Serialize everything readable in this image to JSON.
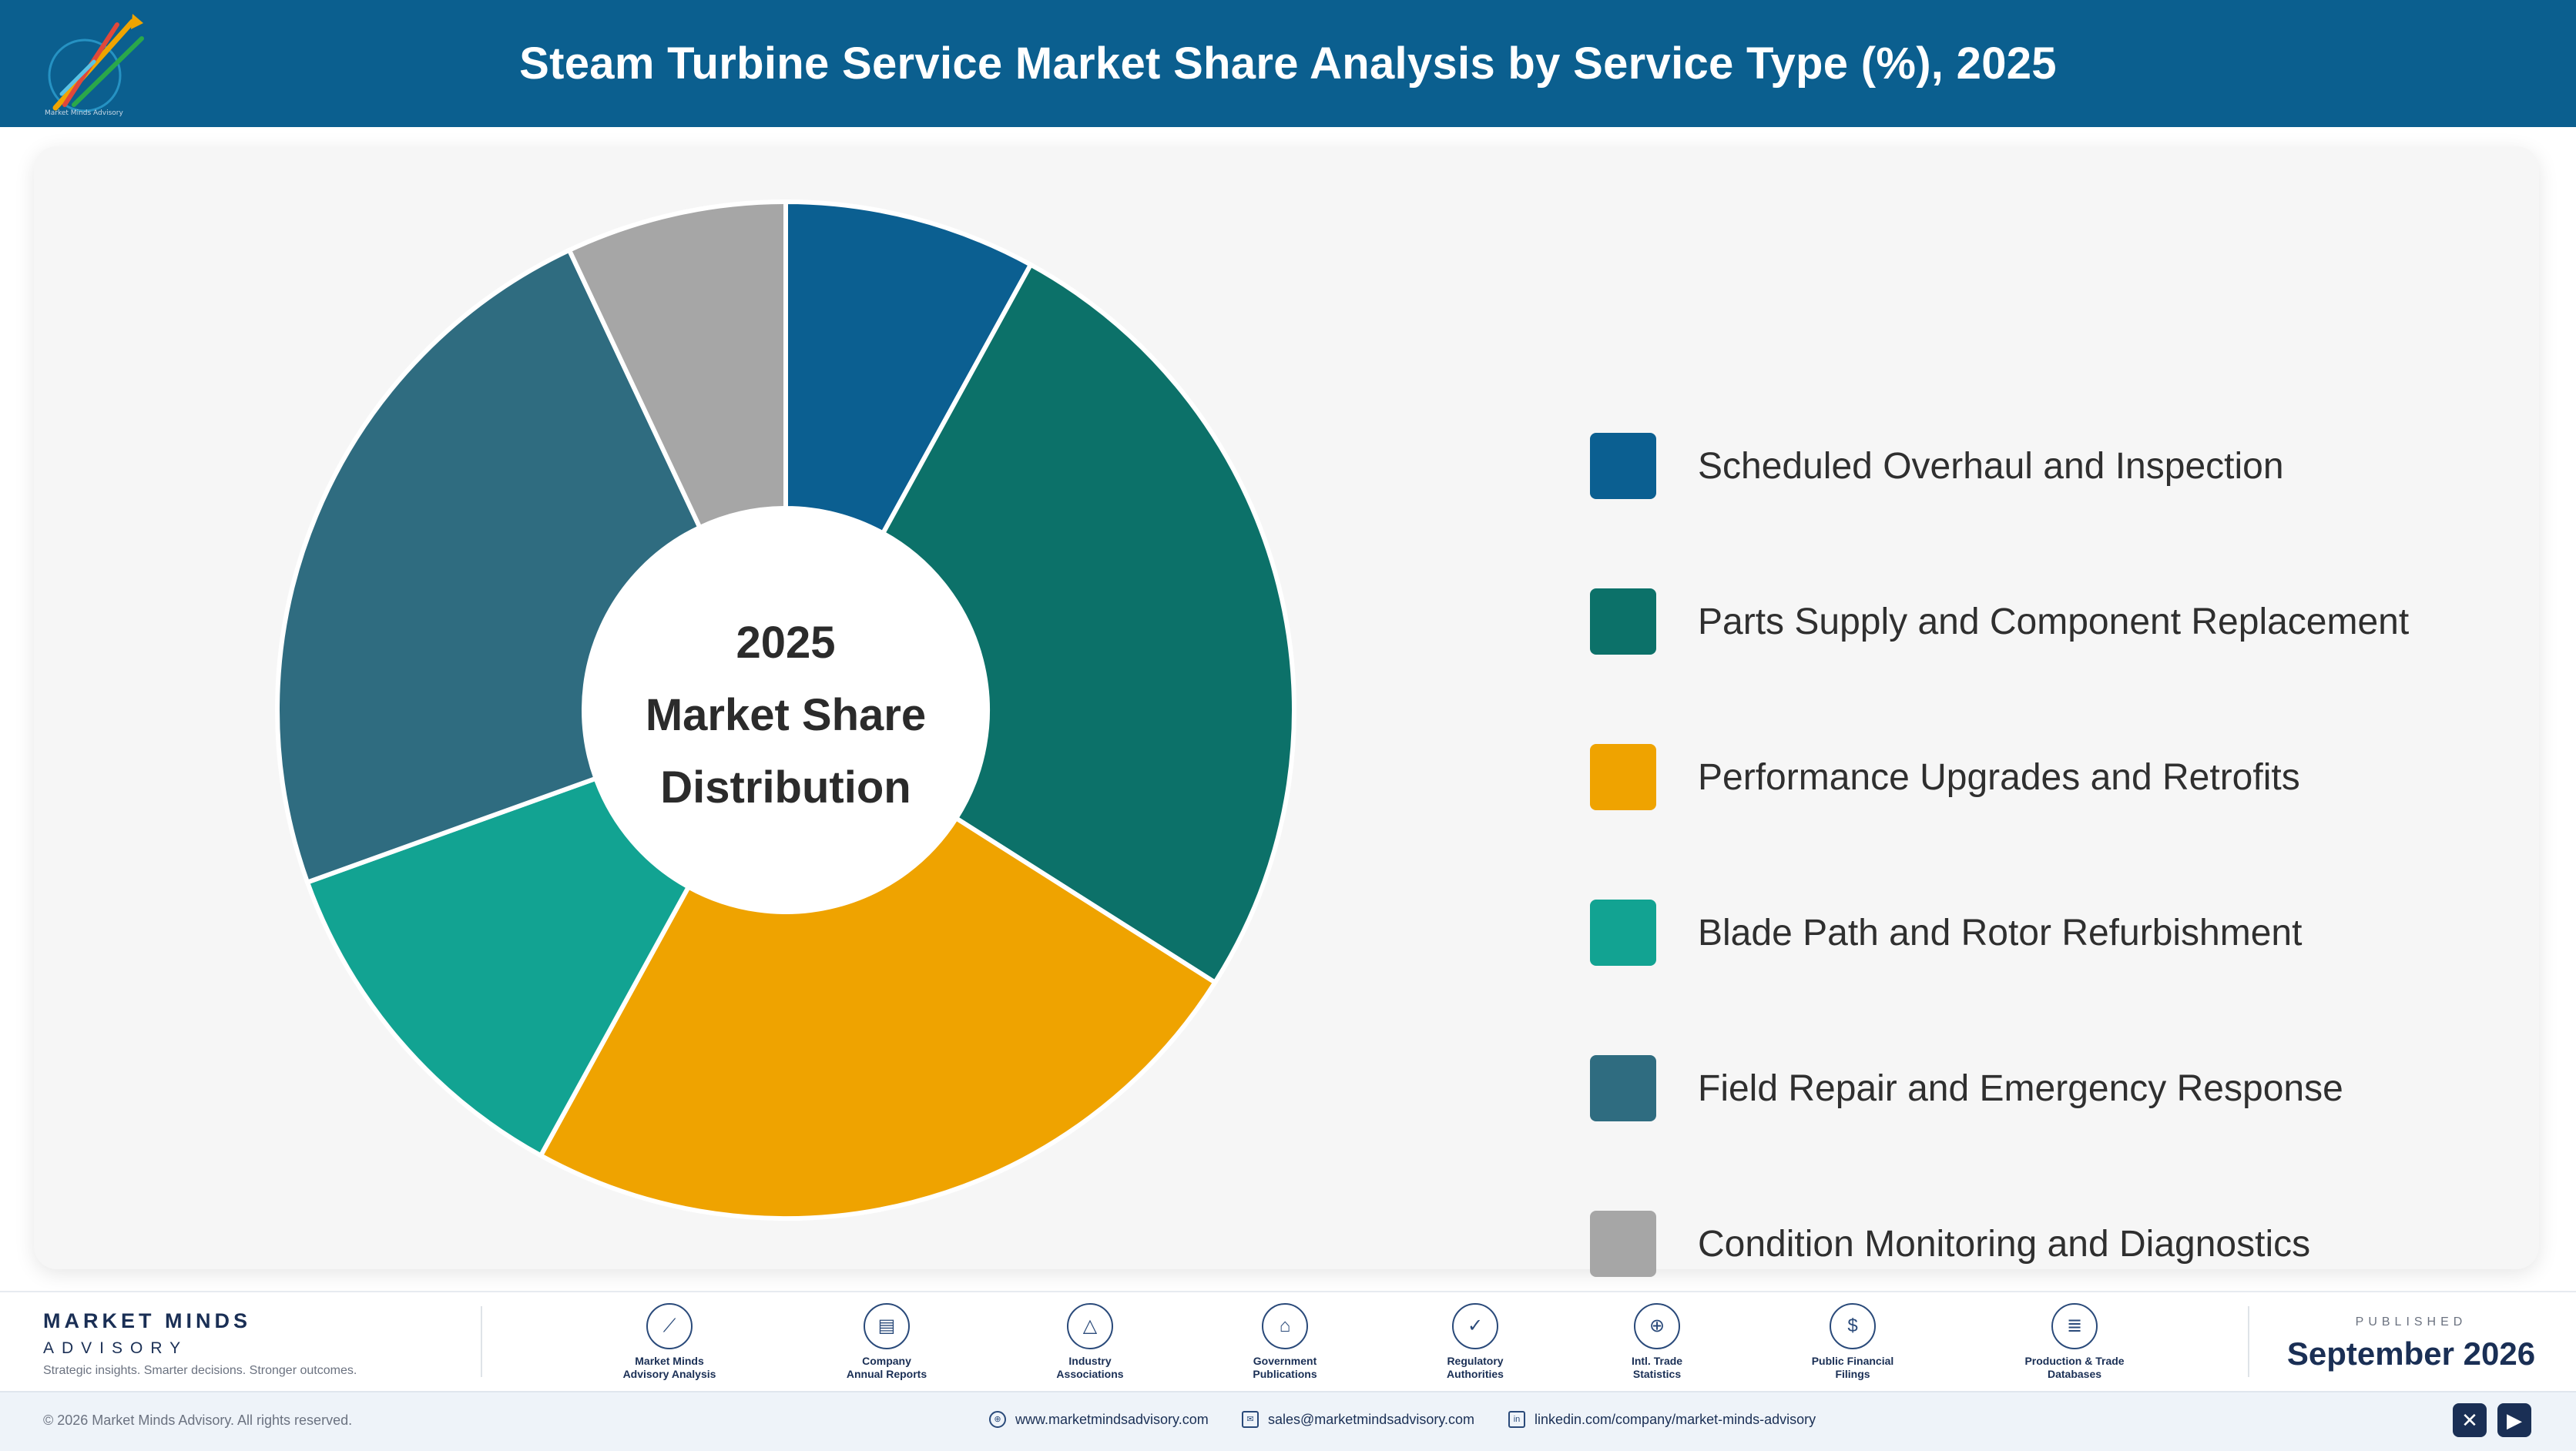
{
  "header": {
    "title": "Steam Turbine Service Market Share Analysis by Service Type (%), 2025"
  },
  "logo": {
    "name": "logo-mark",
    "text": "Market Minds Advisory"
  },
  "center_label": {
    "line1": "2025",
    "line2": "Market Share",
    "line3": "Distribution"
  },
  "chart_data": {
    "type": "pie",
    "donut": true,
    "title": "Steam Turbine Service Market Share Analysis by Service Type (%), 2025",
    "categories": [
      "Scheduled Overhaul and Inspection",
      "Parts Supply and Component Replacement",
      "Performance Upgrades and Retrofits",
      "Blade Path and Rotor Refurbishment",
      "Field Repair and Emergency Response",
      "Condition Monitoring and Diagnostics"
    ],
    "values": [
      8,
      26,
      24,
      11.5,
      23.5,
      7
    ],
    "colors": [
      "#0b5f91",
      "#0c7169",
      "#efa300",
      "#12a392",
      "#2f6c80",
      "#a6a6a6"
    ],
    "legend_position": "right",
    "grid": false
  },
  "footer": {
    "brand_name": "MARKET MINDS",
    "brand_sub": "ADVISORY",
    "tagline": "Strategic insights. Smarter decisions. Stronger outcomes.",
    "sources": [
      {
        "name": "source-market-minds",
        "icon": "chart-line-icon",
        "glyph": "⟋",
        "line1": "Market Minds",
        "line2": "Advisory Analysis"
      },
      {
        "name": "source-annual-reports",
        "icon": "document-icon",
        "glyph": "▤",
        "line1": "Company",
        "line2": "Annual Reports"
      },
      {
        "name": "source-industry-associations",
        "icon": "network-icon",
        "glyph": "△",
        "line1": "Industry",
        "line2": "Associations"
      },
      {
        "name": "source-government-publications",
        "icon": "government-building-icon",
        "glyph": "⌂",
        "line1": "Government",
        "line2": "Publications"
      },
      {
        "name": "source-regulatory-authorities",
        "icon": "shield-check-icon",
        "glyph": "✓",
        "line1": "Regulatory",
        "line2": "Authorities"
      },
      {
        "name": "source-trade-statistics",
        "icon": "globe-icon",
        "glyph": "⊕",
        "line1": "Intl. Trade",
        "line2": "Statistics"
      },
      {
        "name": "source-financial-filings",
        "icon": "dollar-coin-icon",
        "glyph": "$",
        "line1": "Public Financial",
        "line2": "Filings"
      },
      {
        "name": "source-trade-databases",
        "icon": "database-icon",
        "glyph": "≣",
        "line1": "Production & Trade",
        "line2": "Databases"
      }
    ],
    "published_label": "PUBLISHED",
    "published_date": "September 2026",
    "copyright": "© 2026 Market Minds Advisory. All rights reserved.",
    "website": "www.marketmindsadvisory.com",
    "email": "sales@marketmindsadvisory.com",
    "linkedin": "linkedin.com/company/market-minds-advisory",
    "social": [
      {
        "name": "x-social-icon",
        "glyph": "✕"
      },
      {
        "name": "youtube-social-icon",
        "glyph": "▶"
      }
    ]
  }
}
